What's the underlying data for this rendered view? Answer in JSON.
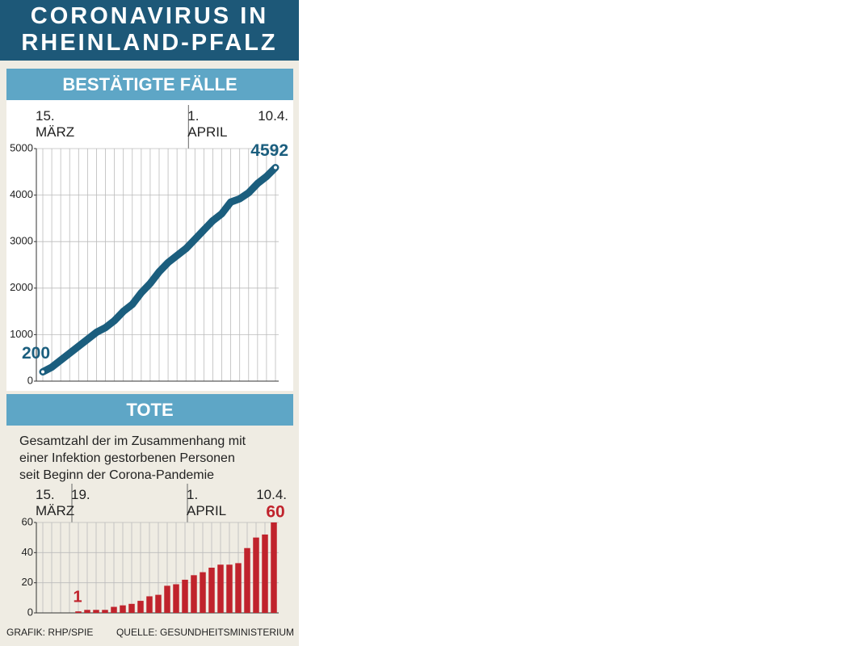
{
  "header": {
    "title": "CORONAVIRUS IN\nRHEINLAND-PFALZ"
  },
  "chart_data": [
    {
      "type": "line",
      "title": "BESTÄTIGTE FÄLLE",
      "categories": [
        "15.\nMÄRZ",
        null,
        null,
        null,
        null,
        null,
        null,
        null,
        null,
        null,
        null,
        null,
        null,
        null,
        null,
        null,
        null,
        "1.\nAPRIL",
        null,
        null,
        null,
        null,
        null,
        null,
        null,
        null,
        "10.4."
      ],
      "series": [
        {
          "name": "Bestätigte Fälle",
          "color": "#1b5e7e",
          "values": [
            200,
            300,
            450,
            600,
            750,
            900,
            1050,
            1150,
            1300,
            1500,
            1650,
            1900,
            2100,
            2350,
            2550,
            2700,
            2850,
            3050,
            3250,
            3450,
            3600,
            3850,
            3920,
            4050,
            4250,
            4400,
            4592
          ]
        }
      ],
      "ylim": [
        0,
        5000
      ],
      "yticks": [
        0,
        1000,
        2000,
        3000,
        4000,
        5000
      ],
      "grid": true
    },
    {
      "type": "bar",
      "title": "TOTE",
      "subtitle": "Gesamtzahl der im Zusammenhang mit\neiner Infektion gestorbenen Personen\nseit Beginn der Corona-Pandemie",
      "categories": [
        "15.\nMÄRZ",
        null,
        null,
        null,
        "19.",
        null,
        null,
        null,
        null,
        null,
        null,
        null,
        null,
        null,
        null,
        null,
        null,
        "1.\nAPRIL",
        null,
        null,
        null,
        null,
        null,
        null,
        null,
        null,
        "10.4."
      ],
      "series": [
        {
          "name": "Tote",
          "color": "#c0232c",
          "values": [
            0,
            0,
            0,
            0,
            1,
            2,
            2,
            2,
            4,
            5,
            6,
            8,
            11,
            12,
            18,
            19,
            22,
            25,
            27,
            30,
            32,
            32,
            33,
            43,
            50,
            52,
            60
          ]
        }
      ],
      "ylim": [
        0,
        60
      ],
      "yticks": [
        0,
        20,
        40,
        60
      ],
      "grid": true
    }
  ],
  "footer": {
    "credit": "GRAFIK: RHP/SPIE",
    "source": "QUELLE: GESUNDHEITSMINISTERIUM"
  }
}
